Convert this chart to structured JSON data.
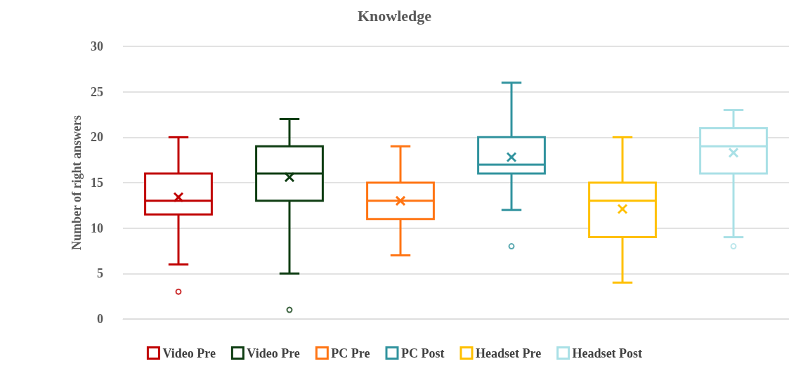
{
  "chart_data": {
    "type": "box",
    "title": "Knowledge",
    "ylabel": "Number of right answers",
    "categories": [
      null,
      null,
      null,
      null,
      null,
      null
    ],
    "ylim": [
      0,
      30
    ],
    "yticks": [
      0,
      5,
      10,
      15,
      20,
      25,
      30
    ],
    "grid": "y",
    "legend": "bottom",
    "marker": "cross",
    "series": [
      {
        "name": "Video Pre",
        "color": "#c00000",
        "boxes": [
          {
            "low": 6,
            "q1": 11.5,
            "median": 13,
            "q3": 16,
            "high": 20,
            "mean": 13.4,
            "outliers": [
              3
            ]
          },
          null,
          null,
          null,
          null,
          null
        ]
      },
      {
        "name": "Video Pre",
        "color": "#0e3d12",
        "boxes": [
          null,
          {
            "low": 5,
            "q1": 13,
            "median": 16,
            "q3": 19,
            "high": 22,
            "mean": 15.6,
            "outliers": [
              1
            ]
          },
          null,
          null,
          null,
          null
        ]
      },
      {
        "name": "PC Pre",
        "color": "#ff7514",
        "boxes": [
          null,
          null,
          {
            "low": 7,
            "q1": 11,
            "median": 13,
            "q3": 15,
            "high": 19,
            "mean": 13
          },
          null,
          null,
          null
        ]
      },
      {
        "name": "PC Post",
        "color": "#31939e",
        "boxes": [
          null,
          null,
          null,
          {
            "low": 12,
            "q1": 16,
            "median": 17,
            "q3": 20,
            "high": 26,
            "mean": 17.8,
            "outliers": [
              8
            ]
          },
          null,
          null
        ]
      },
      {
        "name": "Headset Pre",
        "color": "#ffc000",
        "boxes": [
          null,
          null,
          null,
          null,
          {
            "low": 4,
            "q1": 9,
            "median": 13,
            "q3": 15,
            "high": 20,
            "mean": 12.1
          },
          null
        ]
      },
      {
        "name": "Headset Post",
        "color": "#a9e0e6",
        "boxes": [
          null,
          null,
          null,
          null,
          null,
          {
            "low": 9,
            "q1": 16,
            "median": 19,
            "q3": 21,
            "high": 23,
            "mean": 18.3,
            "outliers": [
              8
            ]
          }
        ]
      }
    ]
  }
}
